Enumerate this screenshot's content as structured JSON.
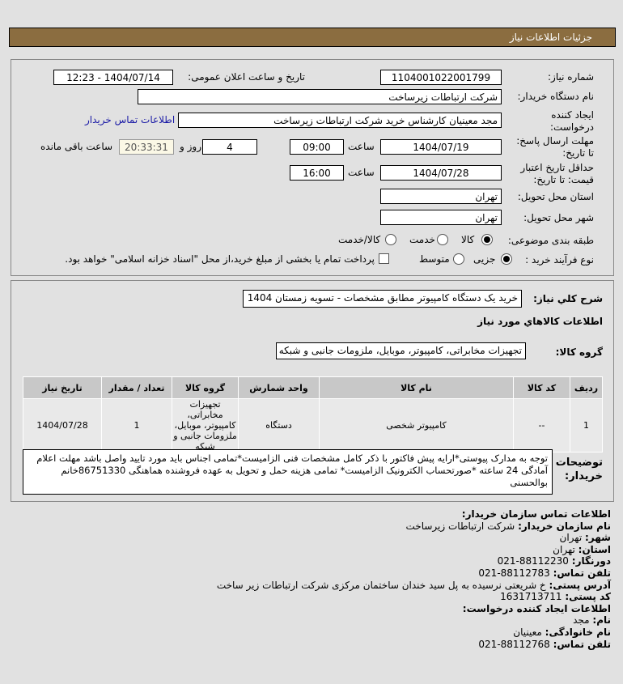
{
  "header": {
    "title": "جزئیات اطلاعات نیاز"
  },
  "form": {
    "need_number_label": "شماره نیاز:",
    "need_number": "1104001022001799",
    "announce_label": "تاریخ و ساعت اعلان عمومی:",
    "announce_value": "1404/07/14 - 12:23",
    "buyer_label": "نام دستگاه خریدار:",
    "buyer_value": "شرکت ارتباطات زیرساخت",
    "creator_label": "ایجاد کننده درخواست:",
    "creator_value": "مجد معینیان کارشناس خرید شرکت ارتباطات زیرساخت",
    "contact_link": "اطلاعات تماس خریدار",
    "deadline_label": "مهلت ارسال پاسخ: تا تاریخ:",
    "deadline_date": "1404/07/19",
    "time_label": "ساعت",
    "deadline_time": "09:00",
    "days": "4",
    "days_label": "روز و",
    "remaining": "20:33:31",
    "remaining_label": "ساعت باقی مانده",
    "validity_label": "حداقل تاریخ اعتبار قیمت: تا تاریخ:",
    "validity_date": "1404/07/28",
    "validity_time": "16:00",
    "province_label": "استان محل تحویل:",
    "province": "تهران",
    "city_label": "شهر محل تحویل:",
    "city": "تهران",
    "category_label": "طبقه بندی موضوعی:",
    "category_options": [
      "کالا",
      "خدمت",
      "کالا/خدمت"
    ],
    "category_selected": "کالا",
    "process_label": "نوع فرآیند خرید :",
    "process_options": [
      "جزیی",
      "متوسط"
    ],
    "process_selected": "جزیی",
    "payment_note": "پرداخت تمام یا بخشی از مبلغ خرید،از محل \"اسناد خزانه اسلامی\" خواهد بود."
  },
  "details": {
    "summary_label": "شرح کلي نیاز:",
    "summary": "خرید یک دستگاه کامپیوتر مطابق مشخصات - تسویه زمستان 1404",
    "goods_title": "اطلاعات کالاهاي مورد نیاز",
    "group_label": "گروه کالا:",
    "group": "تجهیزات مخابراتی، کامپیوتر، موبایل، ملزومات جانبی و شبکه",
    "table": {
      "headers": [
        "ردیف",
        "کد کالا",
        "نام کالا",
        "واحد شمارش",
        "گروه کالا",
        "تعداد / مقدار",
        "تاریخ نیاز"
      ],
      "rows": [
        [
          "1",
          "--",
          "کامپیوتر شخصی",
          "دستگاه",
          "تجهیزات مخابراتی، کامپیوتر، موبایل، ملزومات جانبی و شبکه",
          "1",
          "1404/07/28"
        ]
      ]
    },
    "desc_label": "توضیحات خریدار:",
    "desc": "توجه به مدارک پیوستی*ارایه پیش فاکتور با ذکر کامل مشخصات فنی الزامیست*تمامی اجناس باید مورد تایید واصل باشد مهلت اعلام آمادگی 24 ساعته *صورتحساب الکترونیک الزامیست* تمامی هزینه حمل و تحویل به عهدە فروشنده هماهنگی 86751330خانم بوالحسنی"
  },
  "contact": {
    "title": "اطلاعات تماس سازمان خریدار:",
    "org_label": "نام سازمان خریدار:",
    "org": "شرکت ارتباطات زیرساخت",
    "city_label": "شهر:",
    "city": "تهران",
    "province_label": "استان:",
    "province": "تهران",
    "fax_label": "دورنگار:",
    "fax": "88112230-021",
    "phone_label": "تلفن تماس:",
    "phone": "88112783-021",
    "address_label": "آدرس پستی:",
    "address": "خ شریعتی نرسیده به پل سید خندان ساختمان مرکزی شرکت ارتباطات زیر ساخت",
    "postal_label": "کد پستی:",
    "postal": "1631713711",
    "creator_title": "اطلاعات ایجاد کننده درخواست:",
    "name_label": "نام:",
    "name": "مجد",
    "family_label": "نام خانوادگی:",
    "family": "معینیان",
    "cphone_label": "تلفن تماس:",
    "cphone": "88112768-021"
  },
  "colors": {
    "header": "#8b6d40",
    "link": "#1a1aa6"
  }
}
